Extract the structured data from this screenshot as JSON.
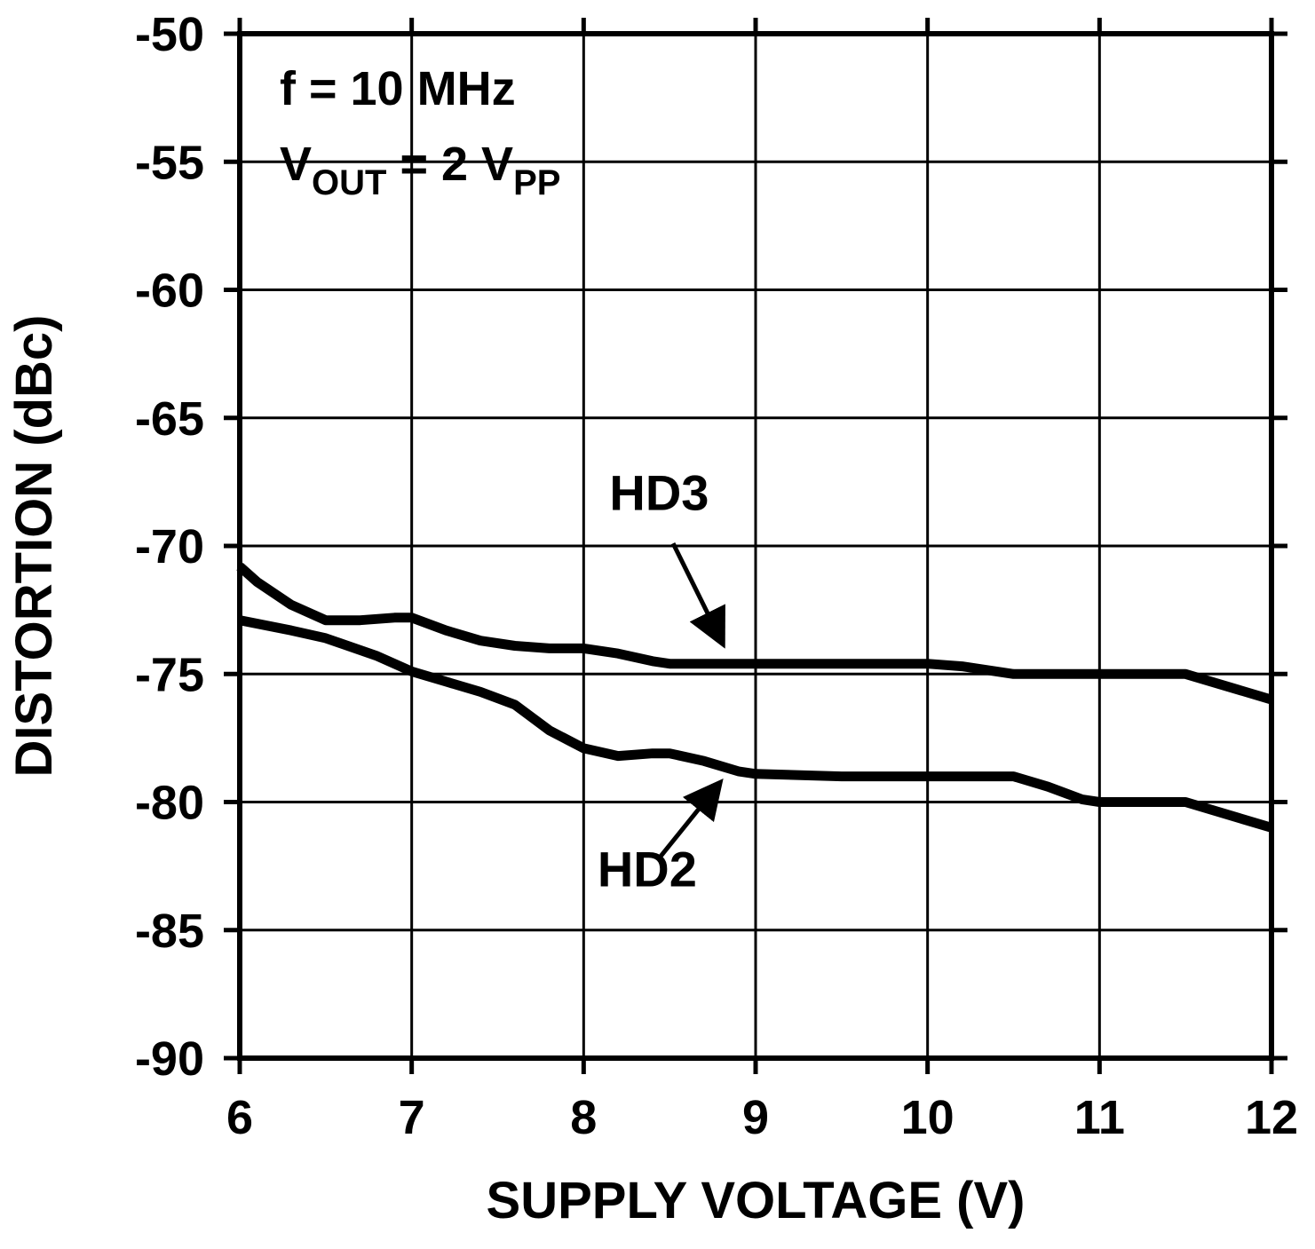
{
  "chart_data": {
    "type": "line",
    "title": "",
    "xlabel": "SUPPLY VOLTAGE (V)",
    "ylabel": "DISTORTION (dBc)",
    "xlim": [
      6,
      12
    ],
    "ylim": [
      -90,
      -50
    ],
    "x_ticks": [
      6,
      7,
      8,
      9,
      10,
      11,
      12
    ],
    "y_ticks": [
      -90,
      -85,
      -80,
      -75,
      -70,
      -65,
      -60,
      -55,
      -50
    ],
    "grid": true,
    "line_color": "#000000",
    "annotations": {
      "condition_line1": "f = 10 MHz",
      "condition_line2_parts": [
        {
          "t": "V",
          "sub": false
        },
        {
          "t": "OUT",
          "sub": true
        },
        {
          "t": " =  2 V",
          "sub": false
        },
        {
          "t": "PP",
          "sub": true
        }
      ]
    },
    "series": [
      {
        "name": "HD3",
        "points": [
          [
            6.0,
            -70.8
          ],
          [
            6.1,
            -71.4
          ],
          [
            6.3,
            -72.3
          ],
          [
            6.5,
            -72.9
          ],
          [
            6.7,
            -72.9
          ],
          [
            6.9,
            -72.8
          ],
          [
            7.0,
            -72.8
          ],
          [
            7.2,
            -73.3
          ],
          [
            7.4,
            -73.7
          ],
          [
            7.6,
            -73.9
          ],
          [
            7.8,
            -74.0
          ],
          [
            8.0,
            -74.0
          ],
          [
            8.2,
            -74.2
          ],
          [
            8.4,
            -74.5
          ],
          [
            8.5,
            -74.6
          ],
          [
            9.0,
            -74.6
          ],
          [
            9.5,
            -74.6
          ],
          [
            10.0,
            -74.6
          ],
          [
            10.2,
            -74.7
          ],
          [
            10.5,
            -75.0
          ],
          [
            11.0,
            -75.0
          ],
          [
            11.5,
            -75.0
          ],
          [
            12.0,
            -76.0
          ]
        ],
        "label": {
          "text": "HD3",
          "x": 8.15,
          "y": -68.6,
          "arrow": {
            "x1": 8.52,
            "y1": -69.9,
            "x2": 8.8,
            "y2": -73.7
          }
        }
      },
      {
        "name": "HD2",
        "points": [
          [
            6.0,
            -72.9
          ],
          [
            6.3,
            -73.3
          ],
          [
            6.5,
            -73.6
          ],
          [
            6.8,
            -74.3
          ],
          [
            7.0,
            -74.9
          ],
          [
            7.2,
            -75.3
          ],
          [
            7.4,
            -75.7
          ],
          [
            7.6,
            -76.2
          ],
          [
            7.8,
            -77.2
          ],
          [
            8.0,
            -77.9
          ],
          [
            8.2,
            -78.2
          ],
          [
            8.4,
            -78.1
          ],
          [
            8.5,
            -78.1
          ],
          [
            8.7,
            -78.4
          ],
          [
            8.9,
            -78.8
          ],
          [
            9.0,
            -78.9
          ],
          [
            9.5,
            -79.0
          ],
          [
            10.0,
            -79.0
          ],
          [
            10.5,
            -79.0
          ],
          [
            10.7,
            -79.4
          ],
          [
            10.9,
            -79.9
          ],
          [
            11.0,
            -80.0
          ],
          [
            11.5,
            -80.0
          ],
          [
            12.0,
            -81.0
          ]
        ],
        "label": {
          "text": "HD2",
          "x": 8.08,
          "y": -83.3,
          "arrow": {
            "x1": 8.45,
            "y1": -82.1,
            "x2": 8.78,
            "y2": -79.35
          }
        }
      }
    ]
  },
  "layout_hints": {
    "legend": "none",
    "frame": "full box with outward ticks on all sides"
  }
}
